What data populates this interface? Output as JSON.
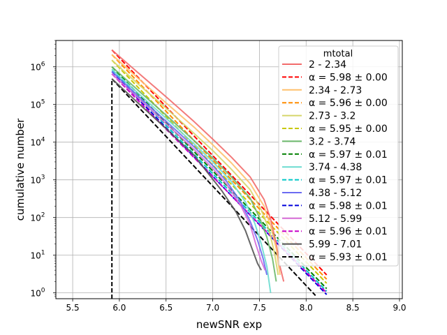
{
  "chart_data": {
    "type": "line",
    "xlabel": "newSNR exp",
    "ylabel": "cumulative number",
    "xlim": [
      5.32,
      9.03
    ],
    "ylim": [
      0.7,
      5000000
    ],
    "yscale": "log",
    "grid": true,
    "x_ticks": [
      5.5,
      6.0,
      6.5,
      7.0,
      7.5,
      8.0,
      8.5,
      9.0
    ],
    "x_tick_labels": [
      "5.5",
      "6.0",
      "6.5",
      "7.0",
      "7.5",
      "8.0",
      "8.5",
      "9.0"
    ],
    "y_ticks": [
      1,
      10,
      100,
      1000,
      10000,
      100000,
      1000000
    ],
    "y_tick_base": "10",
    "y_tick_exponents": [
      "0",
      "1",
      "2",
      "3",
      "4",
      "5",
      "6"
    ],
    "threshold_x": 5.92,
    "legend": {
      "title": "mtotal",
      "placement": "upper right",
      "entries": [
        {
          "label": "2 - 2.34",
          "color": "#f26b6b",
          "style": "solid"
        },
        {
          "label": "α = 5.98 ± 0.00",
          "color": "#ff0000",
          "style": "dashed"
        },
        {
          "label": "2.34 - 2.73",
          "color": "#ffc06b",
          "style": "solid"
        },
        {
          "label": "α = 5.96 ± 0.00",
          "color": "#ff8c00",
          "style": "dashed"
        },
        {
          "label": "2.73 - 3.2",
          "color": "#d6d66b",
          "style": "solid"
        },
        {
          "label": "α = 5.95 ± 0.00",
          "color": "#c8c800",
          "style": "dashed"
        },
        {
          "label": "3.2 - 3.74",
          "color": "#6bb86b",
          "style": "solid"
        },
        {
          "label": "α = 5.97 ± 0.01",
          "color": "#008000",
          "style": "dashed"
        },
        {
          "label": "3.74 - 4.38",
          "color": "#6bdcd0",
          "style": "solid"
        },
        {
          "label": "α = 5.97 ± 0.01",
          "color": "#00c8c8",
          "style": "dashed"
        },
        {
          "label": "4.38 - 5.12",
          "color": "#6b6bf2",
          "style": "solid"
        },
        {
          "label": "α = 5.98 ± 0.01",
          "color": "#0000dc",
          "style": "dashed"
        },
        {
          "label": "5.12 - 5.99",
          "color": "#d66bd6",
          "style": "solid"
        },
        {
          "label": "α = 5.96 ± 0.01",
          "color": "#c800c8",
          "style": "dashed"
        },
        {
          "label": "5.99 - 7.01",
          "color": "#555555",
          "style": "solid"
        },
        {
          "label": "α = 5.93 ± 0.01",
          "color": "#000000",
          "style": "dashed"
        }
      ]
    },
    "series": [
      {
        "name": "2 - 2.34",
        "kind": "data",
        "color": "#f26b6b",
        "x": [
          5.92,
          6.2,
          6.5,
          6.8,
          7.0,
          7.2,
          7.4,
          7.55,
          7.62,
          7.68,
          7.72,
          7.76
        ],
        "y": [
          2800000,
          700000,
          160000,
          35000,
          12000,
          4000,
          1200,
          300,
          90,
          20,
          5,
          2
        ]
      },
      {
        "name": "α = 5.98 ± 0.00",
        "kind": "fit",
        "color": "#ff0000",
        "x": [
          5.92,
          8.22
        ],
        "y": [
          2800000,
          3
        ]
      },
      {
        "name": "2.34 - 2.73",
        "kind": "data",
        "color": "#ffc06b",
        "x": [
          5.92,
          6.2,
          6.5,
          6.8,
          7.0,
          7.2,
          7.4,
          7.55,
          7.62,
          7.68,
          7.72
        ],
        "y": [
          2100000,
          500000,
          110000,
          25000,
          8500,
          2800,
          800,
          200,
          60,
          15,
          3
        ]
      },
      {
        "name": "α = 5.96 ± 0.00",
        "kind": "fit",
        "color": "#ff8c00",
        "x": [
          5.92,
          8.22
        ],
        "y": [
          2100000,
          2.3
        ]
      },
      {
        "name": "2.73 - 3.2",
        "kind": "data",
        "color": "#d6d66b",
        "x": [
          5.92,
          6.2,
          6.5,
          6.8,
          7.0,
          7.2,
          7.4,
          7.52,
          7.6,
          7.66,
          7.7
        ],
        "y": [
          1500000,
          350000,
          80000,
          17000,
          6000,
          1900,
          550,
          160,
          50,
          12,
          3
        ]
      },
      {
        "name": "α = 5.95 ± 0.00",
        "kind": "fit",
        "color": "#c8c800",
        "x": [
          5.92,
          8.22
        ],
        "y": [
          1500000,
          1.8
        ]
      },
      {
        "name": "3.2 - 3.74",
        "kind": "data",
        "color": "#6bb86b",
        "x": [
          5.92,
          6.2,
          6.5,
          6.8,
          7.0,
          7.2,
          7.4,
          7.5,
          7.58,
          7.64,
          7.68
        ],
        "y": [
          1000000,
          240000,
          52000,
          11000,
          3800,
          1200,
          330,
          100,
          30,
          8,
          2
        ]
      },
      {
        "name": "α = 5.97 ± 0.01",
        "kind": "fit",
        "color": "#008000",
        "x": [
          5.92,
          8.22
        ],
        "y": [
          1000000,
          1.3
        ]
      },
      {
        "name": "3.74 - 4.38",
        "kind": "data",
        "color": "#6bdcd0",
        "x": [
          5.92,
          6.2,
          6.5,
          6.8,
          7.0,
          7.2,
          7.35,
          7.45,
          7.52,
          7.58,
          7.62
        ],
        "y": [
          850000,
          200000,
          43000,
          9000,
          3000,
          900,
          260,
          70,
          20,
          5,
          1
        ]
      },
      {
        "name": "α = 5.97 ± 0.01",
        "kind": "fit",
        "color": "#00c8c8",
        "x": [
          5.92,
          8.22
        ],
        "y": [
          850000,
          1.1
        ]
      },
      {
        "name": "4.38 - 5.12",
        "kind": "data",
        "color": "#6b6bf2",
        "x": [
          5.92,
          6.2,
          6.5,
          6.8,
          7.0,
          7.15,
          7.3,
          7.4,
          7.48,
          7.54,
          7.58
        ],
        "y": [
          750000,
          170000,
          36000,
          7500,
          2400,
          900,
          260,
          80,
          25,
          8,
          3
        ]
      },
      {
        "name": "α = 5.98 ± 0.01",
        "kind": "fit",
        "color": "#0000dc",
        "x": [
          5.92,
          8.22
        ],
        "y": [
          750000,
          0.9
        ]
      },
      {
        "name": "5.12 - 5.99",
        "kind": "data",
        "color": "#d66bd6",
        "x": [
          5.92,
          6.2,
          6.5,
          6.8,
          7.0,
          7.15,
          7.3,
          7.4,
          7.46,
          7.52,
          7.56
        ],
        "y": [
          650000,
          150000,
          31000,
          6400,
          2000,
          750,
          210,
          65,
          20,
          7,
          4
        ]
      },
      {
        "name": "α = 5.96 ± 0.01",
        "kind": "fit",
        "color": "#c800c8",
        "x": [
          5.92,
          8.22
        ],
        "y": [
          650000,
          1.0
        ]
      },
      {
        "name": "5.99 - 7.01",
        "kind": "data",
        "color": "#555555",
        "x": [
          5.92,
          6.2,
          6.5,
          6.8,
          6.95,
          7.1,
          7.25,
          7.35,
          7.42,
          7.48,
          7.52
        ],
        "y": [
          480000,
          110000,
          23000,
          4500,
          1500,
          500,
          140,
          45,
          15,
          6,
          4
        ]
      },
      {
        "name": "α = 5.93 ± 0.01",
        "kind": "fit",
        "color": "#000000",
        "x": [
          5.92,
          8.1
        ],
        "y": [
          480000,
          0.85
        ]
      }
    ]
  }
}
